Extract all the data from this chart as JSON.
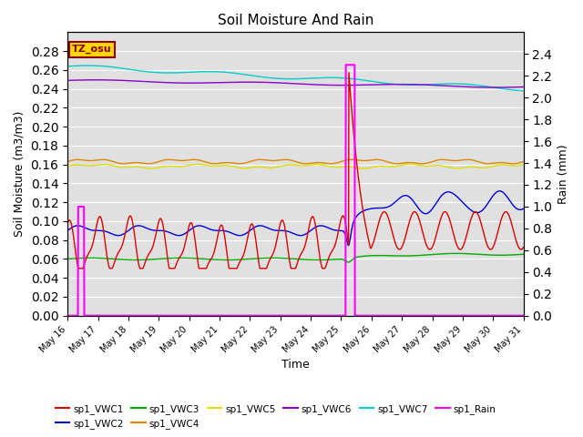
{
  "title": "Soil Moisture And Rain",
  "xlabel": "Time",
  "ylabel_left": "Soil Moisture (m3/m3)",
  "ylabel_right": "Rain (mm)",
  "annotation_text": "TZ_osu",
  "annotation_box_color": "#FFD700",
  "annotation_text_color": "#8B0000",
  "background_color": "#e0e0e0",
  "ylim_left": [
    0.0,
    0.3
  ],
  "ylim_right": [
    0.0,
    2.6
  ],
  "series": {
    "sp1_VWC1": {
      "color": "#dd0000",
      "lw": 1.0
    },
    "sp1_VWC2": {
      "color": "#0000dd",
      "lw": 1.0
    },
    "sp1_VWC3": {
      "color": "#00aa00",
      "lw": 1.0
    },
    "sp1_VWC4": {
      "color": "#dd8800",
      "lw": 1.0
    },
    "sp1_VWC5": {
      "color": "#dddd00",
      "lw": 1.0
    },
    "sp1_VWC6": {
      "color": "#8800cc",
      "lw": 1.0
    },
    "sp1_VWC7": {
      "color": "#00cccc",
      "lw": 1.0
    },
    "sp1_Rain": {
      "color": "#ff00ff",
      "lw": 1.5
    }
  },
  "xtick_labels": [
    "May 16",
    "May 17",
    "May 18",
    "May 19",
    "May 20",
    "May 21",
    "May 22",
    "May 23",
    "May 24",
    "May 25",
    "May 26",
    "May 27",
    "May 28",
    "May 29",
    "May 30",
    "May 31"
  ],
  "yticks_left": [
    0.0,
    0.02,
    0.04,
    0.06,
    0.08,
    0.1,
    0.12,
    0.14,
    0.16,
    0.18,
    0.2,
    0.22,
    0.24,
    0.26,
    0.28
  ],
  "yticks_right": [
    0.0,
    0.2,
    0.4,
    0.6,
    0.8,
    1.0,
    1.2,
    1.4,
    1.6,
    1.8,
    2.0,
    2.2,
    2.4
  ],
  "legend_entries": [
    [
      "sp1_VWC1",
      "sp1_VWC2",
      "sp1_VWC3",
      "sp1_VWC4",
      "sp1_VWC5",
      "sp1_VWC6"
    ],
    [
      "sp1_VWC7",
      "sp1_Rain"
    ]
  ]
}
